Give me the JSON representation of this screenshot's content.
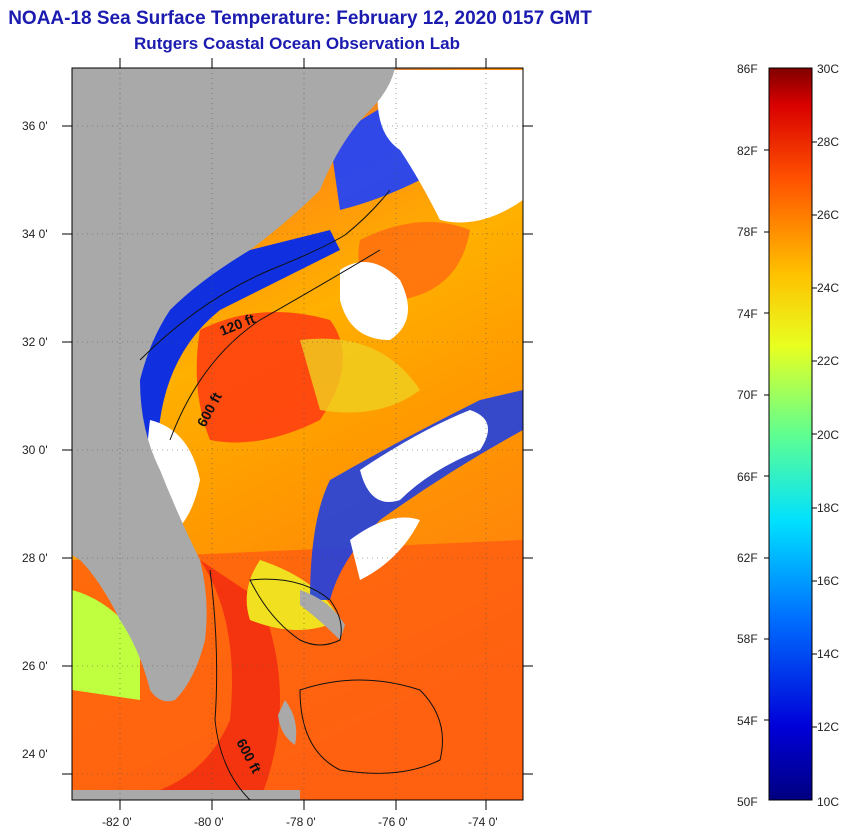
{
  "title": {
    "line1": "NOAA-18 Sea Surface Temperature:  February 12, 2020 0157 GMT",
    "line2": "Rutgers Coastal Ocean Observation Lab"
  },
  "map": {
    "lat_ticks": [
      "36 0'",
      "34 0'",
      "32 0'",
      "30 0'",
      "28 0'",
      "26 0'",
      "24 0'"
    ],
    "lon_ticks": [
      "-82 0'",
      "-80 0'",
      "-78 0'",
      "-76 0'",
      "-74 0'"
    ],
    "isobaths": [
      "120 ft",
      "600 ft",
      "600 ft"
    ],
    "colors": {
      "land": "#a9a9a9",
      "cloud": "#ffffff"
    }
  },
  "colorbar": {
    "fahrenheit": [
      "86F",
      "82F",
      "78F",
      "74F",
      "70F",
      "66F",
      "62F",
      "58F",
      "54F",
      "50F"
    ],
    "celsius": [
      "30C",
      "28C",
      "26C",
      "24C",
      "22C",
      "20C",
      "18C",
      "16C",
      "14C",
      "12C",
      "10C"
    ]
  }
}
